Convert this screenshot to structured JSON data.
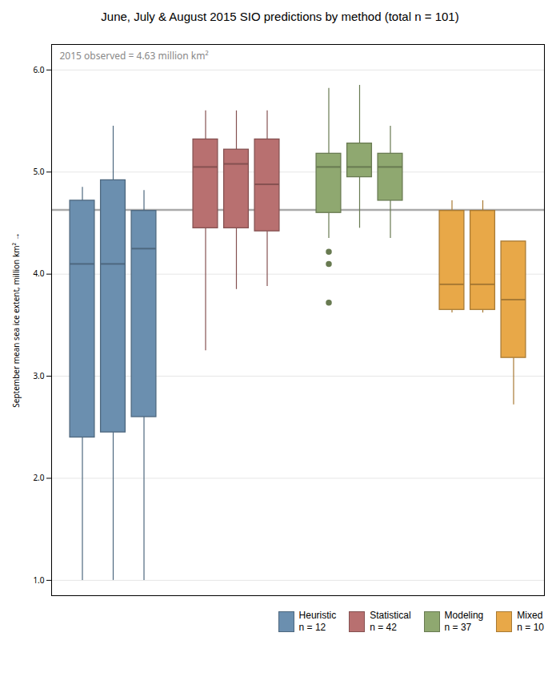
{
  "chart_data": {
    "type": "box",
    "title": "June, July & August 2015 SIO predictions by method (total n = 101)",
    "ylabel": "September mean sea ice extent, million km²",
    "ylim": [
      0.85,
      6.25
    ],
    "yticks": [
      1,
      2,
      3,
      4,
      5,
      6
    ],
    "grid": true,
    "legend": "lower right",
    "tick_labels": "y",
    "observed_value": 4.63,
    "observed_label": "2015 observed = 4.63 million km²",
    "series": [
      {
        "name": "Heuristic\nn = 12",
        "color": "#6b8faf",
        "boxes": [
          {
            "whislo": 1.0,
            "q1": 2.4,
            "med": 4.1,
            "q3": 4.72,
            "whishi": 4.85,
            "fliers": []
          },
          {
            "whislo": 1.0,
            "q1": 2.45,
            "med": 4.1,
            "q3": 4.92,
            "whishi": 5.45,
            "fliers": []
          },
          {
            "whislo": 1.0,
            "q1": 2.6,
            "med": 4.25,
            "q3": 4.62,
            "whishi": 4.82,
            "fliers": []
          }
        ]
      },
      {
        "name": "Statistical\nn = 42",
        "color": "#b87070",
        "boxes": [
          {
            "whislo": 3.25,
            "q1": 4.45,
            "med": 5.05,
            "q3": 5.32,
            "whishi": 5.6,
            "fliers": []
          },
          {
            "whislo": 3.85,
            "q1": 4.45,
            "med": 5.08,
            "q3": 5.22,
            "whishi": 5.6,
            "fliers": []
          },
          {
            "whislo": 3.88,
            "q1": 4.42,
            "med": 4.88,
            "q3": 5.32,
            "whishi": 5.6,
            "fliers": []
          }
        ]
      },
      {
        "name": "Modeling\nn = 37",
        "color": "#8fa870",
        "boxes": [
          {
            "whislo": 4.35,
            "q1": 4.6,
            "med": 5.05,
            "q3": 5.18,
            "whishi": 5.82,
            "fliers": [
              4.22,
              4.1,
              3.72
            ]
          },
          {
            "whislo": 4.45,
            "q1": 4.95,
            "med": 5.05,
            "q3": 5.28,
            "whishi": 5.85,
            "fliers": []
          },
          {
            "whislo": 4.35,
            "q1": 4.72,
            "med": 5.05,
            "q3": 5.18,
            "whishi": 5.45,
            "fliers": []
          }
        ]
      },
      {
        "name": "Mixed\nn = 10",
        "color": "#e8a848",
        "boxes": [
          {
            "whislo": 3.62,
            "q1": 3.65,
            "med": 3.9,
            "q3": 4.62,
            "whishi": 4.72,
            "fliers": []
          },
          {
            "whislo": 3.62,
            "q1": 3.65,
            "med": 3.9,
            "q3": 4.62,
            "whishi": 4.72,
            "fliers": []
          },
          {
            "whislo": 2.72,
            "q1": 3.18,
            "med": 3.75,
            "q3": 4.32,
            "whishi": 4.32,
            "fliers": []
          }
        ]
      }
    ]
  }
}
